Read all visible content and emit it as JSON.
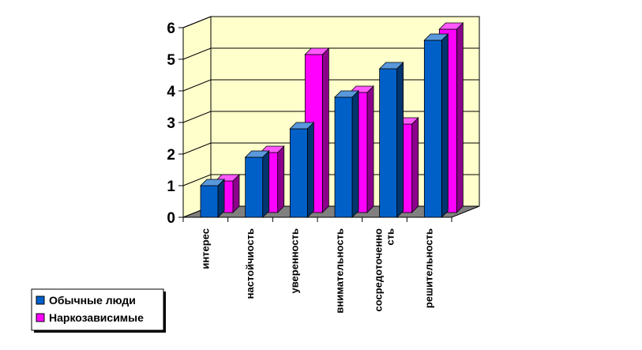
{
  "chart_data": {
    "type": "bar",
    "categories": [
      [
        "интерес"
      ],
      [
        "настойчиость"
      ],
      [
        "уверенность"
      ],
      [
        "внимательность"
      ],
      [
        "сосредоточенно",
        "сть"
      ],
      [
        "решительность"
      ]
    ],
    "series": [
      {
        "name": "Обычные люди",
        "values": [
          1.0,
          1.9,
          2.8,
          3.8,
          4.7,
          5.6
        ]
      },
      {
        "name": "Наркозависимые",
        "values": [
          1.0,
          1.9,
          5.0,
          3.8,
          2.8,
          5.8
        ]
      }
    ],
    "ylim": [
      0,
      6
    ],
    "yticks": [
      0,
      1,
      2,
      3,
      4,
      5,
      6
    ],
    "grid": true,
    "legend_position": "bottom-left",
    "colors": {
      "series": [
        "#0060c8",
        "#ff00ff"
      ],
      "wall": "#ffffcc",
      "floor": "#808080"
    }
  }
}
